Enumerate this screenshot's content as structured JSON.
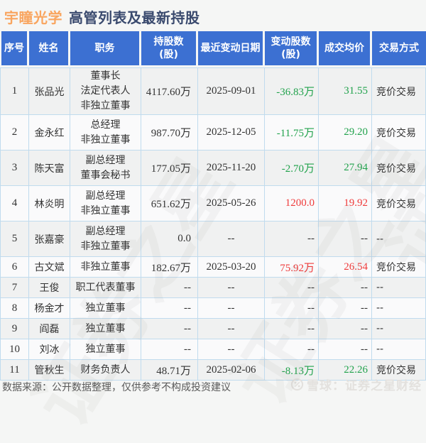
{
  "page": {
    "title_company": "宇瞳光学",
    "title_rest": "高管列表及最新持股",
    "footer": "数据来源：公开数据整理，仅供参考不构成投资建议",
    "brand": "雪球：证券之星财经",
    "watermark": "证券之星",
    "colors": {
      "header_bg": "#3c70d2",
      "up": "#ef3a3a",
      "down": "#21a24c",
      "neutral": "#333333",
      "title_company": "#f9a55f",
      "title_text": "#3a4a6e",
      "border": "#c0dbee"
    }
  },
  "table": {
    "columns": [
      {
        "label": "序号"
      },
      {
        "label": "姓名"
      },
      {
        "label": "职务"
      },
      {
        "label": "持股数\n(股)"
      },
      {
        "label": "最近变动日期"
      },
      {
        "label": "变动股数\n(股)"
      },
      {
        "label": "成交均价"
      },
      {
        "label": "交易方式"
      }
    ],
    "rows": [
      {
        "no": "1",
        "name": "张品光",
        "roles": [
          "董事长",
          "法定代表人",
          "非独立董事"
        ],
        "shares": "4117.60万",
        "date": "2025-09-01",
        "change": "-36.83万",
        "price": "31.55",
        "method": "竞价交易",
        "trend": "down"
      },
      {
        "no": "2",
        "name": "金永红",
        "roles": [
          "总经理",
          "非独立董事"
        ],
        "shares": "987.70万",
        "date": "2025-12-05",
        "change": "-11.75万",
        "price": "29.20",
        "method": "竞价交易",
        "trend": "down"
      },
      {
        "no": "3",
        "name": "陈天富",
        "roles": [
          "副总经理",
          "董事会秘书"
        ],
        "shares": "177.05万",
        "date": "2025-11-20",
        "change": "-2.70万",
        "price": "27.94",
        "method": "竞价交易",
        "trend": "down"
      },
      {
        "no": "4",
        "name": "林炎明",
        "roles": [
          "副总经理",
          "非独立董事"
        ],
        "shares": "651.62万",
        "date": "2025-05-26",
        "change": "1200.0",
        "price": "19.92",
        "method": "竞价交易",
        "trend": "up"
      },
      {
        "no": "5",
        "name": "张嘉豪",
        "roles": [
          "副总经理",
          "非独立董事"
        ],
        "shares": "0.0",
        "date": "--",
        "change": "--",
        "price": "--",
        "method": "--",
        "trend": "none"
      },
      {
        "no": "6",
        "name": "古文斌",
        "roles": [
          "非独立董事"
        ],
        "shares": "182.67万",
        "date": "2025-03-20",
        "change": "75.92万",
        "price": "26.54",
        "method": "竞价交易",
        "trend": "up"
      },
      {
        "no": "7",
        "name": "王俊",
        "roles": [
          "职工代表董事"
        ],
        "shares": "--",
        "date": "--",
        "change": "--",
        "price": "--",
        "method": "--",
        "trend": "none"
      },
      {
        "no": "8",
        "name": "杨金才",
        "roles": [
          "独立董事"
        ],
        "shares": "--",
        "date": "--",
        "change": "--",
        "price": "--",
        "method": "--",
        "trend": "none"
      },
      {
        "no": "9",
        "name": "阎磊",
        "roles": [
          "独立董事"
        ],
        "shares": "--",
        "date": "--",
        "change": "--",
        "price": "--",
        "method": "--",
        "trend": "none"
      },
      {
        "no": "10",
        "name": "刘冰",
        "roles": [
          "独立董事"
        ],
        "shares": "--",
        "date": "--",
        "change": "--",
        "price": "--",
        "method": "--",
        "trend": "none"
      },
      {
        "no": "11",
        "name": "管秋生",
        "roles": [
          "财务负责人"
        ],
        "shares": "48.71万",
        "date": "2025-02-06",
        "change": "-8.13万",
        "price": "22.26",
        "method": "竞价交易",
        "trend": "down"
      }
    ]
  }
}
